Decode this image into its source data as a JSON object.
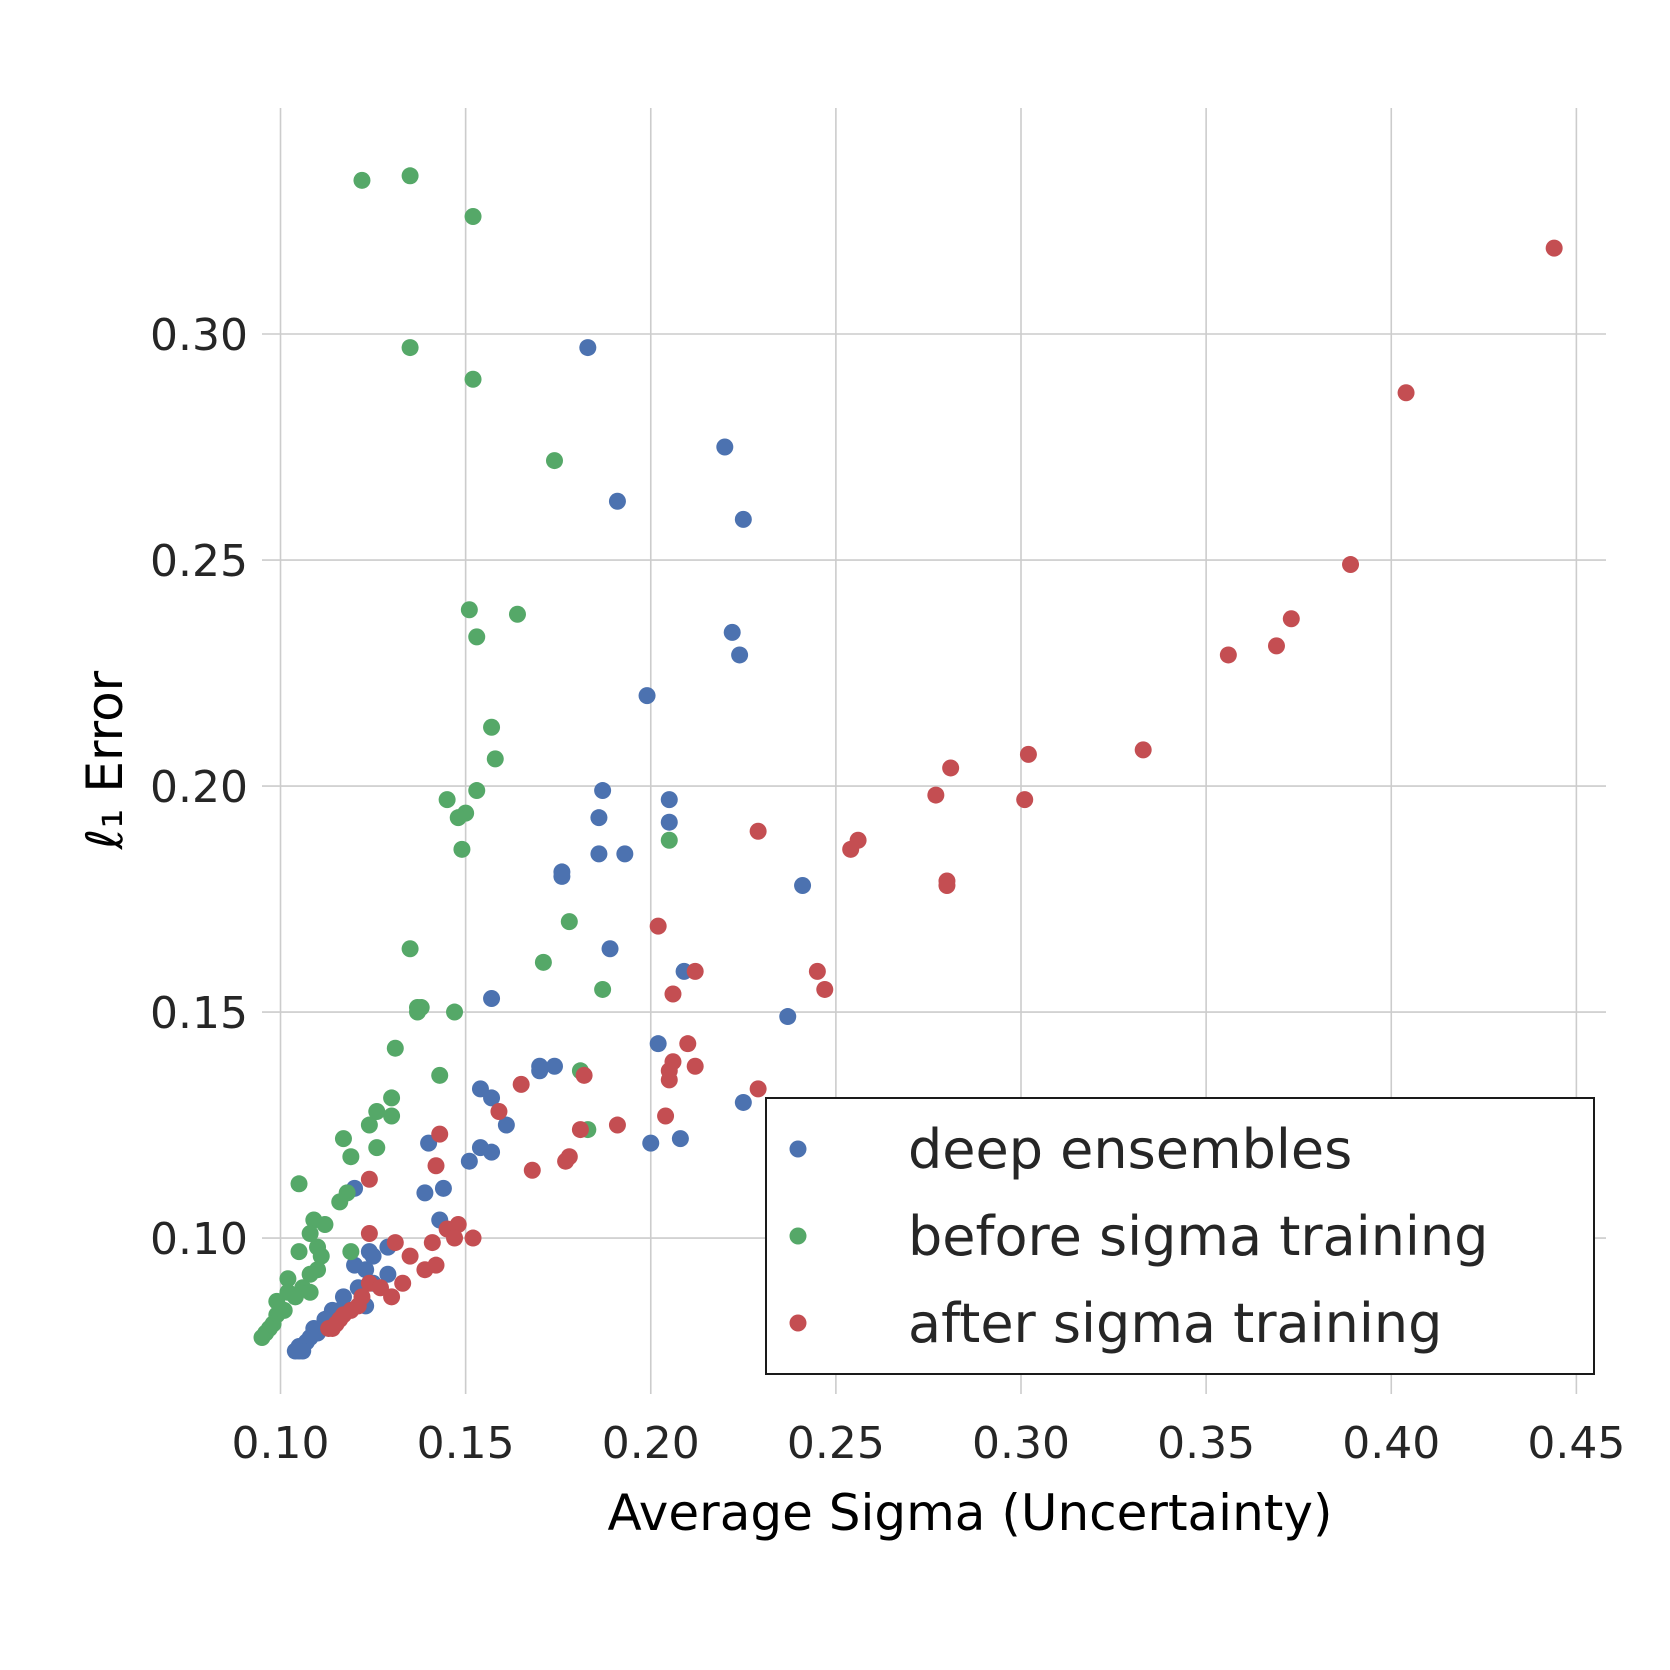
{
  "chart_data": {
    "type": "scatter",
    "xlabel": "Average Sigma (Uncertainty)",
    "ylabel": "ℓ₁ Error",
    "xlim": [
      0.095,
      0.458
    ],
    "ylim": [
      0.0655,
      0.35
    ],
    "xticks": [
      "0.10",
      "0.15",
      "0.20",
      "0.25",
      "0.30",
      "0.35",
      "0.40",
      "0.45"
    ],
    "yticks": [
      "0.10",
      "0.15",
      "0.20",
      "0.25",
      "0.30"
    ],
    "grid": true,
    "legend_position": "lower-right",
    "series": [
      {
        "name": "deep ensembles",
        "color": "#4c72b0",
        "points": [
          [
            0.183,
            0.297
          ],
          [
            0.22,
            0.275
          ],
          [
            0.191,
            0.263
          ],
          [
            0.225,
            0.259
          ],
          [
            0.222,
            0.234
          ],
          [
            0.224,
            0.229
          ],
          [
            0.199,
            0.22
          ],
          [
            0.187,
            0.199
          ],
          [
            0.205,
            0.197
          ],
          [
            0.186,
            0.193
          ],
          [
            0.205,
            0.192
          ],
          [
            0.186,
            0.185
          ],
          [
            0.193,
            0.185
          ],
          [
            0.176,
            0.181
          ],
          [
            0.176,
            0.18
          ],
          [
            0.241,
            0.178
          ],
          [
            0.189,
            0.164
          ],
          [
            0.209,
            0.159
          ],
          [
            0.157,
            0.153
          ],
          [
            0.237,
            0.149
          ],
          [
            0.202,
            0.143
          ],
          [
            0.17,
            0.138
          ],
          [
            0.174,
            0.138
          ],
          [
            0.17,
            0.137
          ],
          [
            0.154,
            0.133
          ],
          [
            0.157,
            0.131
          ],
          [
            0.225,
            0.13
          ],
          [
            0.161,
            0.125
          ],
          [
            0.208,
            0.122
          ],
          [
            0.2,
            0.121
          ],
          [
            0.14,
            0.121
          ],
          [
            0.154,
            0.12
          ],
          [
            0.157,
            0.119
          ],
          [
            0.151,
            0.117
          ],
          [
            0.144,
            0.111
          ],
          [
            0.139,
            0.11
          ],
          [
            0.12,
            0.111
          ],
          [
            0.143,
            0.104
          ],
          [
            0.124,
            0.097
          ],
          [
            0.129,
            0.098
          ],
          [
            0.125,
            0.096
          ],
          [
            0.12,
            0.094
          ],
          [
            0.123,
            0.093
          ],
          [
            0.129,
            0.092
          ],
          [
            0.125,
            0.09
          ],
          [
            0.121,
            0.089
          ],
          [
            0.117,
            0.087
          ],
          [
            0.123,
            0.085
          ],
          [
            0.116,
            0.084
          ],
          [
            0.114,
            0.084
          ],
          [
            0.112,
            0.082
          ],
          [
            0.109,
            0.08
          ],
          [
            0.11,
            0.079
          ],
          [
            0.108,
            0.078
          ],
          [
            0.107,
            0.077
          ],
          [
            0.106,
            0.076
          ],
          [
            0.105,
            0.076
          ],
          [
            0.104,
            0.075
          ],
          [
            0.106,
            0.075
          ],
          [
            0.105,
            0.075
          ]
        ]
      },
      {
        "name": "before sigma training",
        "color": "#55a868",
        "points": [
          [
            0.122,
            0.334
          ],
          [
            0.135,
            0.335
          ],
          [
            0.152,
            0.326
          ],
          [
            0.135,
            0.297
          ],
          [
            0.152,
            0.29
          ],
          [
            0.174,
            0.272
          ],
          [
            0.151,
            0.239
          ],
          [
            0.164,
            0.238
          ],
          [
            0.153,
            0.233
          ],
          [
            0.157,
            0.213
          ],
          [
            0.158,
            0.206
          ],
          [
            0.153,
            0.199
          ],
          [
            0.145,
            0.197
          ],
          [
            0.15,
            0.194
          ],
          [
            0.148,
            0.193
          ],
          [
            0.205,
            0.188
          ],
          [
            0.149,
            0.186
          ],
          [
            0.178,
            0.17
          ],
          [
            0.135,
            0.164
          ],
          [
            0.171,
            0.161
          ],
          [
            0.187,
            0.155
          ],
          [
            0.137,
            0.151
          ],
          [
            0.138,
            0.151
          ],
          [
            0.137,
            0.15
          ],
          [
            0.147,
            0.15
          ],
          [
            0.131,
            0.142
          ],
          [
            0.143,
            0.136
          ],
          [
            0.181,
            0.137
          ],
          [
            0.13,
            0.131
          ],
          [
            0.126,
            0.128
          ],
          [
            0.13,
            0.127
          ],
          [
            0.124,
            0.125
          ],
          [
            0.183,
            0.124
          ],
          [
            0.117,
            0.122
          ],
          [
            0.126,
            0.12
          ],
          [
            0.119,
            0.118
          ],
          [
            0.105,
            0.112
          ],
          [
            0.118,
            0.11
          ],
          [
            0.116,
            0.108
          ],
          [
            0.109,
            0.104
          ],
          [
            0.112,
            0.103
          ],
          [
            0.108,
            0.101
          ],
          [
            0.11,
            0.098
          ],
          [
            0.105,
            0.097
          ],
          [
            0.119,
            0.097
          ],
          [
            0.111,
            0.096
          ],
          [
            0.11,
            0.093
          ],
          [
            0.108,
            0.092
          ],
          [
            0.102,
            0.091
          ],
          [
            0.106,
            0.089
          ],
          [
            0.108,
            0.088
          ],
          [
            0.102,
            0.088
          ],
          [
            0.104,
            0.087
          ],
          [
            0.099,
            0.086
          ],
          [
            0.101,
            0.084
          ],
          [
            0.099,
            0.083
          ],
          [
            0.098,
            0.081
          ],
          [
            0.097,
            0.08
          ],
          [
            0.096,
            0.079
          ],
          [
            0.095,
            0.078
          ]
        ]
      },
      {
        "name": "after sigma training",
        "color": "#c44e52",
        "points": [
          [
            0.444,
            0.319
          ],
          [
            0.404,
            0.287
          ],
          [
            0.389,
            0.249
          ],
          [
            0.373,
            0.237
          ],
          [
            0.369,
            0.231
          ],
          [
            0.356,
            0.229
          ],
          [
            0.333,
            0.208
          ],
          [
            0.302,
            0.207
          ],
          [
            0.281,
            0.204
          ],
          [
            0.277,
            0.198
          ],
          [
            0.301,
            0.197
          ],
          [
            0.229,
            0.19
          ],
          [
            0.256,
            0.188
          ],
          [
            0.254,
            0.186
          ],
          [
            0.28,
            0.179
          ],
          [
            0.28,
            0.178
          ],
          [
            0.202,
            0.169
          ],
          [
            0.212,
            0.159
          ],
          [
            0.245,
            0.159
          ],
          [
            0.247,
            0.155
          ],
          [
            0.206,
            0.154
          ],
          [
            0.21,
            0.143
          ],
          [
            0.206,
            0.139
          ],
          [
            0.205,
            0.137
          ],
          [
            0.212,
            0.138
          ],
          [
            0.205,
            0.135
          ],
          [
            0.182,
            0.136
          ],
          [
            0.165,
            0.134
          ],
          [
            0.229,
            0.133
          ],
          [
            0.159,
            0.128
          ],
          [
            0.204,
            0.127
          ],
          [
            0.191,
            0.125
          ],
          [
            0.181,
            0.124
          ],
          [
            0.143,
            0.123
          ],
          [
            0.178,
            0.118
          ],
          [
            0.177,
            0.117
          ],
          [
            0.142,
            0.116
          ],
          [
            0.168,
            0.115
          ],
          [
            0.124,
            0.113
          ],
          [
            0.148,
            0.103
          ],
          [
            0.145,
            0.102
          ],
          [
            0.124,
            0.101
          ],
          [
            0.152,
            0.1
          ],
          [
            0.147,
            0.1
          ],
          [
            0.141,
            0.099
          ],
          [
            0.131,
            0.099
          ],
          [
            0.135,
            0.096
          ],
          [
            0.142,
            0.094
          ],
          [
            0.139,
            0.093
          ],
          [
            0.124,
            0.09
          ],
          [
            0.133,
            0.09
          ],
          [
            0.127,
            0.089
          ],
          [
            0.122,
            0.087
          ],
          [
            0.13,
            0.087
          ],
          [
            0.121,
            0.085
          ],
          [
            0.119,
            0.084
          ],
          [
            0.117,
            0.083
          ],
          [
            0.116,
            0.082
          ],
          [
            0.115,
            0.081
          ],
          [
            0.114,
            0.08
          ],
          [
            0.113,
            0.08
          ]
        ]
      }
    ]
  }
}
